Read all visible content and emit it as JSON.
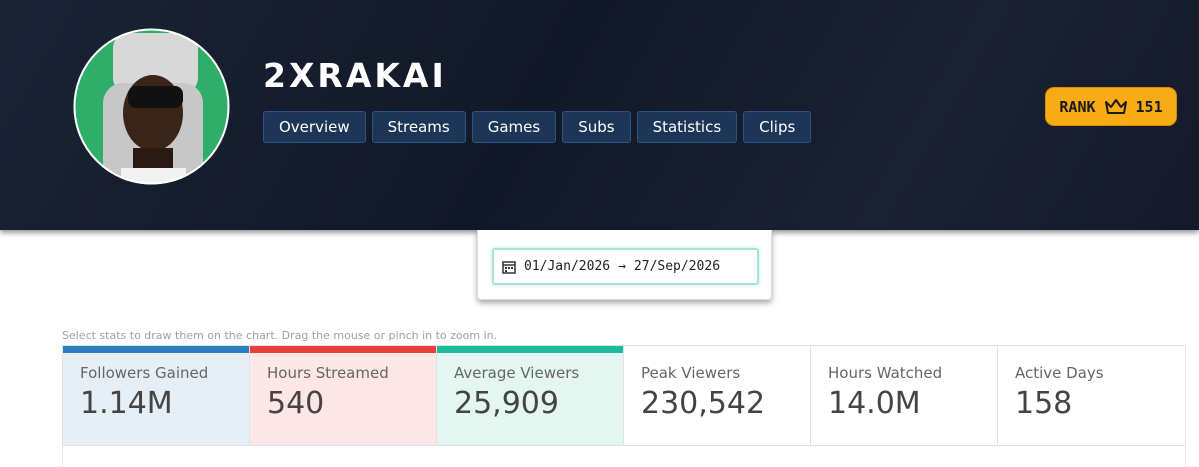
{
  "header": {
    "name": "2XRAKAI",
    "nav": [
      "Overview",
      "Streams",
      "Games",
      "Subs",
      "Statistics",
      "Clips"
    ],
    "rank": {
      "label": "RANK",
      "value": "151"
    }
  },
  "date_range": {
    "start": "01/Jan/2026",
    "separator": "→",
    "end": "27/Sep/2026"
  },
  "hint": "Select stats to draw them on the chart. Drag the mouse or pinch in to zoom in.",
  "stats": [
    {
      "label": "Followers Gained",
      "value": "1.14M",
      "color": "#2e7fc1",
      "background": "#e6eff6"
    },
    {
      "label": "Hours Streamed",
      "value": "540",
      "color": "#e8413c",
      "background": "#fde6e5"
    },
    {
      "label": "Average Viewers",
      "value": "25,909",
      "color": "#1abc9c",
      "background": "#e3f6f0"
    },
    {
      "label": "Peak Viewers",
      "value": "230,542",
      "color": null,
      "background": null
    },
    {
      "label": "Hours Watched",
      "value": "14.0M",
      "color": null,
      "background": null
    },
    {
      "label": "Active Days",
      "value": "158",
      "color": null,
      "background": null
    }
  ]
}
